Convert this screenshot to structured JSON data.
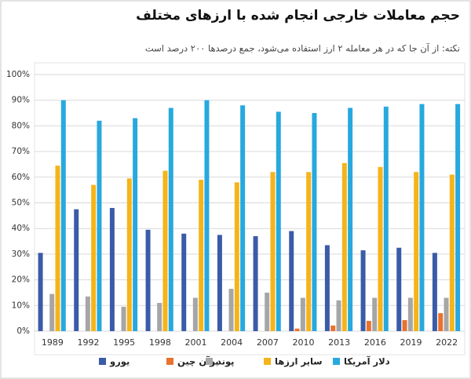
{
  "chart_data": {
    "type": "bar",
    "title": "حجم معاملات خارجی انجام شده با ارزهای مختلف",
    "subtitle": "نکته: از آن جا که در هر معامله ۲ ارز استفاده می‌شود، جمع درصدها ۲۰۰ درصد است",
    "categories": [
      "1989",
      "1992",
      "1995",
      "1998",
      "2001",
      "2004",
      "2007",
      "2010",
      "2013",
      "2016",
      "2019",
      "2022"
    ],
    "series": [
      {
        "name": "یورو",
        "color": "#3a5ba8",
        "values": [
          30.5,
          47.5,
          48,
          39.5,
          38,
          37.5,
          37,
          39,
          33.5,
          31.5,
          32.5,
          30.5
        ]
      },
      {
        "name": "یوآن چین",
        "color": "#e9722f",
        "values": [
          null,
          null,
          null,
          null,
          null,
          null,
          null,
          1,
          2.2,
          4,
          4.3,
          7
        ]
      },
      {
        "name": "پوند",
        "color": "#a6a6a6",
        "values": [
          14.5,
          13.5,
          9.5,
          11,
          13,
          16.5,
          15,
          13,
          12,
          13,
          13,
          13
        ]
      },
      {
        "name": "سایر ارزها",
        "color": "#f5b41a",
        "values": [
          64.5,
          57,
          59.5,
          62.5,
          59,
          58,
          62,
          62,
          65.5,
          64,
          62,
          61
        ]
      },
      {
        "name": "دلار آمریکا",
        "color": "#27a9de",
        "values": [
          90,
          82,
          83,
          87,
          90,
          88,
          85.5,
          85,
          87,
          87.5,
          88.5,
          88.5
        ]
      }
    ],
    "ylim": [
      0,
      100
    ],
    "yticks": [
      {
        "value": 0,
        "label": "0%"
      },
      {
        "value": 10,
        "label": "10%"
      },
      {
        "value": 20,
        "label": "20%"
      },
      {
        "value": 30,
        "label": "30%"
      },
      {
        "value": 40,
        "label": "40%"
      },
      {
        "value": 50,
        "label": "50%"
      },
      {
        "value": 60,
        "label": "60%"
      },
      {
        "value": 70,
        "label": "70%"
      },
      {
        "value": 80,
        "label": "80%"
      },
      {
        "value": 90,
        "label": "90%"
      },
      {
        "value": 100,
        "label": "100%"
      }
    ],
    "grid": true
  }
}
